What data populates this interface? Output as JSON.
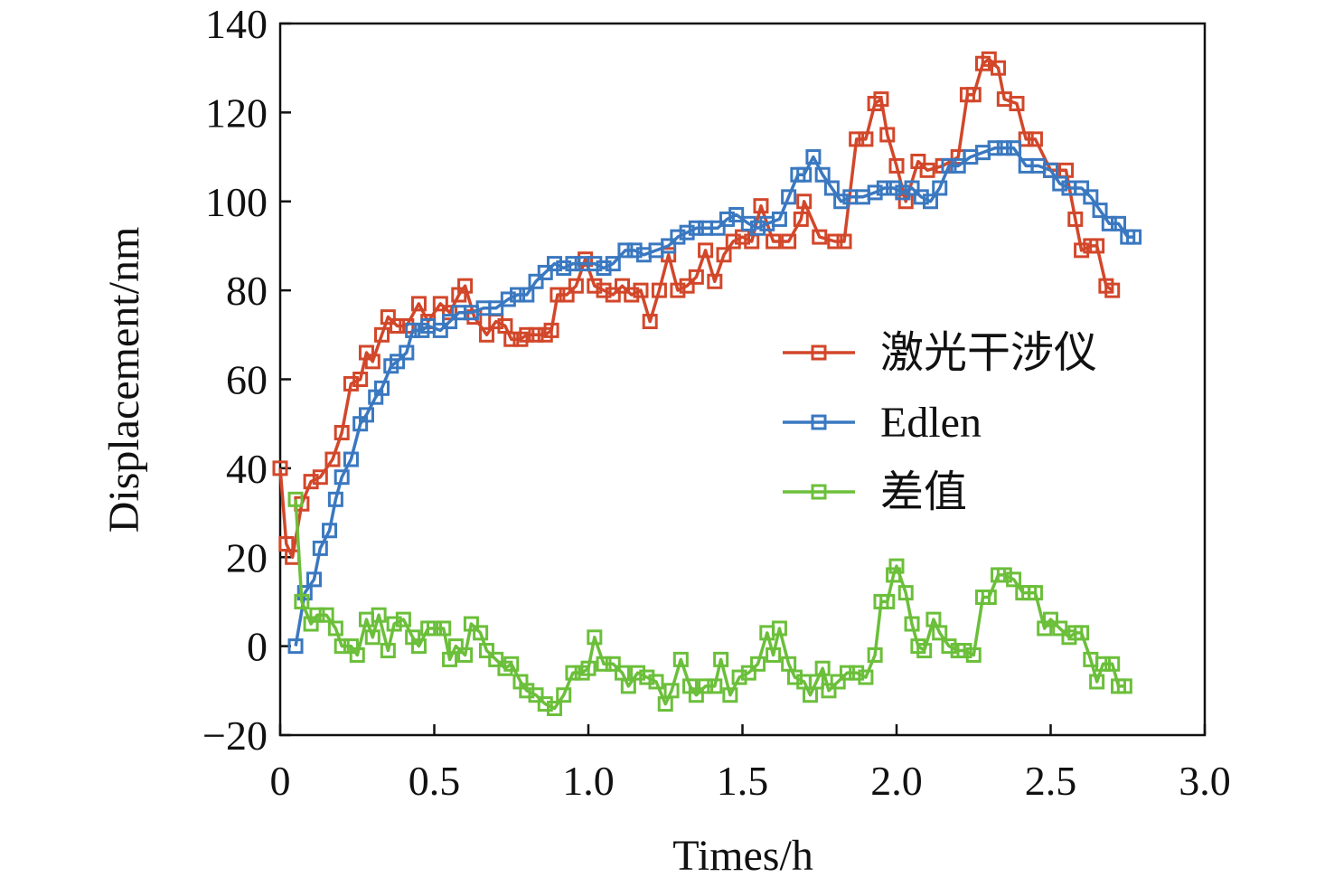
{
  "chart_data": {
    "type": "line",
    "title": "",
    "xlabel": "Times/h",
    "ylabel": "Displacement/nm",
    "xlim": [
      0,
      3.0
    ],
    "ylim": [
      -20,
      140
    ],
    "x_ticks": [
      "0",
      "0.5",
      "1.0",
      "1.5",
      "2.0",
      "2.5",
      "3.0"
    ],
    "y_ticks": [
      "−20",
      "0",
      "20",
      "40",
      "60",
      "80",
      "100",
      "120",
      "140"
    ],
    "grid": false,
    "legend_position": "center-right",
    "marker": "square",
    "series": [
      {
        "name": "激光干涉仪",
        "color": "#d2472a",
        "points": [
          [
            0.0,
            40
          ],
          [
            0.02,
            23
          ],
          [
            0.04,
            20
          ],
          [
            0.07,
            32
          ],
          [
            0.1,
            37
          ],
          [
            0.13,
            38
          ],
          [
            0.17,
            42
          ],
          [
            0.2,
            48
          ],
          [
            0.23,
            59
          ],
          [
            0.26,
            60
          ],
          [
            0.28,
            66
          ],
          [
            0.3,
            64
          ],
          [
            0.33,
            70
          ],
          [
            0.35,
            74
          ],
          [
            0.38,
            72
          ],
          [
            0.41,
            72
          ],
          [
            0.45,
            77
          ],
          [
            0.48,
            73
          ],
          [
            0.52,
            77
          ],
          [
            0.55,
            75
          ],
          [
            0.58,
            79
          ],
          [
            0.6,
            81
          ],
          [
            0.63,
            74
          ],
          [
            0.67,
            70
          ],
          [
            0.7,
            73
          ],
          [
            0.73,
            72
          ],
          [
            0.75,
            69
          ],
          [
            0.78,
            69
          ],
          [
            0.8,
            70
          ],
          [
            0.83,
            70
          ],
          [
            0.86,
            70
          ],
          [
            0.88,
            71
          ],
          [
            0.9,
            79
          ],
          [
            0.93,
            79
          ],
          [
            0.96,
            81
          ],
          [
            0.99,
            87
          ],
          [
            1.02,
            81
          ],
          [
            1.05,
            80
          ],
          [
            1.08,
            79
          ],
          [
            1.11,
            81
          ],
          [
            1.14,
            79
          ],
          [
            1.17,
            80
          ],
          [
            1.2,
            73
          ],
          [
            1.23,
            80
          ],
          [
            1.26,
            88
          ],
          [
            1.29,
            80
          ],
          [
            1.32,
            81
          ],
          [
            1.35,
            83
          ],
          [
            1.38,
            89
          ],
          [
            1.41,
            82
          ],
          [
            1.44,
            88
          ],
          [
            1.47,
            91
          ],
          [
            1.5,
            92
          ],
          [
            1.53,
            91
          ],
          [
            1.56,
            99
          ],
          [
            1.6,
            91
          ],
          [
            1.65,
            91
          ],
          [
            1.69,
            96
          ],
          [
            1.7,
            100
          ],
          [
            1.75,
            92
          ],
          [
            1.8,
            91
          ],
          [
            1.83,
            91
          ],
          [
            1.87,
            114
          ],
          [
            1.9,
            114
          ],
          [
            1.93,
            122
          ],
          [
            1.95,
            123
          ],
          [
            1.97,
            115
          ],
          [
            2.0,
            108
          ],
          [
            2.03,
            100
          ],
          [
            2.07,
            109
          ],
          [
            2.1,
            107
          ],
          [
            2.15,
            108
          ],
          [
            2.2,
            110
          ],
          [
            2.23,
            124
          ],
          [
            2.25,
            124
          ],
          [
            2.28,
            131
          ],
          [
            2.3,
            132
          ],
          [
            2.33,
            130
          ],
          [
            2.35,
            123
          ],
          [
            2.39,
            122
          ],
          [
            2.42,
            114
          ],
          [
            2.45,
            114
          ],
          [
            2.5,
            107
          ],
          [
            2.55,
            107
          ],
          [
            2.58,
            96
          ],
          [
            2.6,
            89
          ],
          [
            2.63,
            90
          ],
          [
            2.65,
            90
          ],
          [
            2.68,
            81
          ],
          [
            2.7,
            80
          ]
        ]
      },
      {
        "name": "Edlen",
        "color": "#3a78c0",
        "points": [
          [
            0.05,
            0
          ],
          [
            0.08,
            12
          ],
          [
            0.11,
            15
          ],
          [
            0.13,
            22
          ],
          [
            0.16,
            26
          ],
          [
            0.18,
            33
          ],
          [
            0.2,
            38
          ],
          [
            0.23,
            42
          ],
          [
            0.26,
            50
          ],
          [
            0.28,
            52
          ],
          [
            0.31,
            56
          ],
          [
            0.33,
            58
          ],
          [
            0.36,
            63
          ],
          [
            0.38,
            64
          ],
          [
            0.41,
            66
          ],
          [
            0.43,
            71
          ],
          [
            0.46,
            71
          ],
          [
            0.48,
            72
          ],
          [
            0.52,
            71
          ],
          [
            0.55,
            73
          ],
          [
            0.58,
            75
          ],
          [
            0.62,
            75
          ],
          [
            0.66,
            76
          ],
          [
            0.7,
            76
          ],
          [
            0.74,
            78
          ],
          [
            0.77,
            79
          ],
          [
            0.8,
            79
          ],
          [
            0.83,
            82
          ],
          [
            0.86,
            84
          ],
          [
            0.89,
            86
          ],
          [
            0.92,
            85
          ],
          [
            0.95,
            86
          ],
          [
            0.98,
            86
          ],
          [
            1.02,
            86
          ],
          [
            1.05,
            85
          ],
          [
            1.08,
            86
          ],
          [
            1.12,
            89
          ],
          [
            1.15,
            89
          ],
          [
            1.18,
            88
          ],
          [
            1.22,
            89
          ],
          [
            1.26,
            90
          ],
          [
            1.29,
            92
          ],
          [
            1.32,
            93
          ],
          [
            1.35,
            94
          ],
          [
            1.38,
            94
          ],
          [
            1.42,
            94
          ],
          [
            1.45,
            96
          ],
          [
            1.48,
            97
          ],
          [
            1.52,
            95
          ],
          [
            1.55,
            94
          ],
          [
            1.58,
            95
          ],
          [
            1.62,
            96
          ],
          [
            1.65,
            101
          ],
          [
            1.68,
            106
          ],
          [
            1.7,
            106
          ],
          [
            1.73,
            110
          ],
          [
            1.76,
            106
          ],
          [
            1.79,
            103
          ],
          [
            1.82,
            100
          ],
          [
            1.85,
            101
          ],
          [
            1.89,
            101
          ],
          [
            1.93,
            102
          ],
          [
            1.96,
            103
          ],
          [
            1.99,
            103
          ],
          [
            2.02,
            102
          ],
          [
            2.05,
            103
          ],
          [
            2.08,
            101
          ],
          [
            2.11,
            100
          ],
          [
            2.14,
            103
          ],
          [
            2.17,
            108
          ],
          [
            2.2,
            108
          ],
          [
            2.24,
            110
          ],
          [
            2.28,
            111
          ],
          [
            2.32,
            112
          ],
          [
            2.35,
            112
          ],
          [
            2.38,
            112
          ],
          [
            2.42,
            108
          ],
          [
            2.46,
            108
          ],
          [
            2.5,
            107
          ],
          [
            2.53,
            104
          ],
          [
            2.56,
            103
          ],
          [
            2.6,
            103
          ],
          [
            2.63,
            101
          ],
          [
            2.66,
            98
          ],
          [
            2.69,
            95
          ],
          [
            2.72,
            95
          ],
          [
            2.75,
            92
          ],
          [
            2.77,
            92
          ]
        ]
      },
      {
        "name": "差值",
        "color": "#6bbf3a",
        "points": [
          [
            0.05,
            33
          ],
          [
            0.07,
            10
          ],
          [
            0.1,
            5
          ],
          [
            0.12,
            7
          ],
          [
            0.15,
            7
          ],
          [
            0.18,
            4
          ],
          [
            0.2,
            0
          ],
          [
            0.23,
            0
          ],
          [
            0.25,
            -2
          ],
          [
            0.28,
            6
          ],
          [
            0.3,
            2
          ],
          [
            0.32,
            7
          ],
          [
            0.35,
            -1
          ],
          [
            0.37,
            5
          ],
          [
            0.4,
            6
          ],
          [
            0.43,
            2
          ],
          [
            0.45,
            0
          ],
          [
            0.48,
            4
          ],
          [
            0.5,
            4
          ],
          [
            0.53,
            4
          ],
          [
            0.55,
            -3
          ],
          [
            0.57,
            0
          ],
          [
            0.6,
            -2
          ],
          [
            0.62,
            5
          ],
          [
            0.65,
            3
          ],
          [
            0.67,
            -1
          ],
          [
            0.7,
            -3
          ],
          [
            0.73,
            -5
          ],
          [
            0.75,
            -4
          ],
          [
            0.78,
            -8
          ],
          [
            0.8,
            -10
          ],
          [
            0.83,
            -11
          ],
          [
            0.86,
            -13
          ],
          [
            0.89,
            -14
          ],
          [
            0.92,
            -11
          ],
          [
            0.95,
            -6
          ],
          [
            0.98,
            -6
          ],
          [
            1.0,
            -5
          ],
          [
            1.02,
            2
          ],
          [
            1.05,
            -4
          ],
          [
            1.08,
            -4
          ],
          [
            1.11,
            -6
          ],
          [
            1.13,
            -9
          ],
          [
            1.16,
            -6
          ],
          [
            1.19,
            -7
          ],
          [
            1.22,
            -8
          ],
          [
            1.25,
            -13
          ],
          [
            1.27,
            -10
          ],
          [
            1.3,
            -3
          ],
          [
            1.33,
            -9
          ],
          [
            1.35,
            -11
          ],
          [
            1.38,
            -9
          ],
          [
            1.41,
            -9
          ],
          [
            1.43,
            -3
          ],
          [
            1.46,
            -11
          ],
          [
            1.49,
            -7
          ],
          [
            1.52,
            -6
          ],
          [
            1.55,
            -4
          ],
          [
            1.58,
            3
          ],
          [
            1.6,
            -2
          ],
          [
            1.62,
            4
          ],
          [
            1.65,
            -4
          ],
          [
            1.67,
            -7
          ],
          [
            1.7,
            -8
          ],
          [
            1.72,
            -11
          ],
          [
            1.74,
            -8
          ],
          [
            1.76,
            -5
          ],
          [
            1.78,
            -10
          ],
          [
            1.81,
            -8
          ],
          [
            1.84,
            -6
          ],
          [
            1.87,
            -6
          ],
          [
            1.9,
            -7
          ],
          [
            1.93,
            -2
          ],
          [
            1.95,
            10
          ],
          [
            1.97,
            10
          ],
          [
            1.99,
            16
          ],
          [
            2.0,
            18
          ],
          [
            2.03,
            12
          ],
          [
            2.05,
            5
          ],
          [
            2.07,
            0
          ],
          [
            2.09,
            -1
          ],
          [
            2.12,
            6
          ],
          [
            2.14,
            3
          ],
          [
            2.17,
            0
          ],
          [
            2.2,
            -1
          ],
          [
            2.22,
            -1
          ],
          [
            2.25,
            -2
          ],
          [
            2.28,
            11
          ],
          [
            2.3,
            11
          ],
          [
            2.33,
            16
          ],
          [
            2.35,
            16
          ],
          [
            2.38,
            15
          ],
          [
            2.41,
            12
          ],
          [
            2.43,
            12
          ],
          [
            2.45,
            12
          ],
          [
            2.48,
            4
          ],
          [
            2.5,
            6
          ],
          [
            2.53,
            4
          ],
          [
            2.56,
            2
          ],
          [
            2.58,
            3
          ],
          [
            2.6,
            3
          ],
          [
            2.63,
            -3
          ],
          [
            2.65,
            -8
          ],
          [
            2.67,
            -4
          ],
          [
            2.7,
            -4
          ],
          [
            2.72,
            -9
          ],
          [
            2.74,
            -9
          ]
        ]
      }
    ]
  }
}
